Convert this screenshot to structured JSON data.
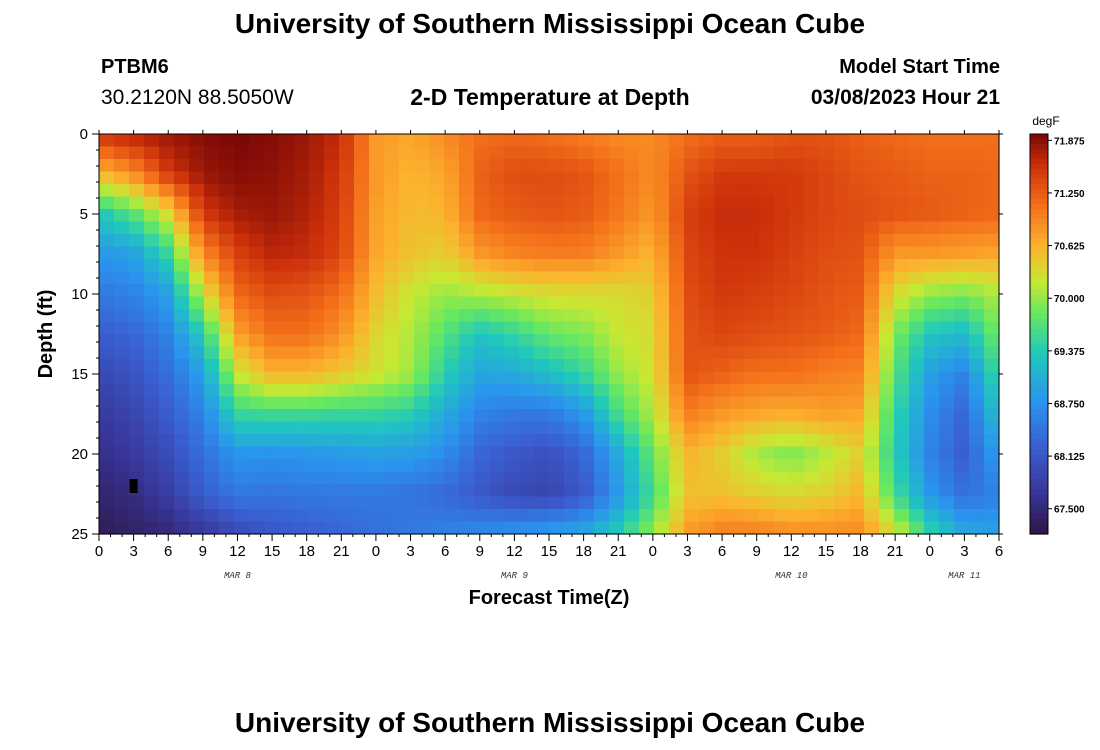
{
  "title": "University of Southern Mississippi Ocean Cube",
  "title_bottom": "University of Southern Mississippi Ocean Cube",
  "station": {
    "id": "PTBM6",
    "coords": "30.2120N  88.5050W"
  },
  "subtitle": "2-D Temperature at Depth",
  "model": {
    "label": "Model Start Time",
    "time": "03/08/2023 Hour 21"
  },
  "chart_data": {
    "type": "heatmap",
    "title": "2-D Temperature at Depth",
    "xlabel": "Forecast Time(Z)",
    "ylabel": "Depth (ft)",
    "x_range_hours": [
      0,
      78
    ],
    "y_range_ft": [
      0,
      25
    ],
    "x_tick_labels": [
      "0",
      "3",
      "6",
      "9",
      "12",
      "15",
      "18",
      "21",
      "0",
      "3",
      "6",
      "9",
      "12",
      "15",
      "18",
      "21",
      "0",
      "3",
      "6",
      "9",
      "12",
      "15",
      "18",
      "21",
      "0",
      "3",
      "6"
    ],
    "date_labels": [
      "MAR 8",
      "MAR 9",
      "MAR 10",
      "MAR 11"
    ],
    "date_label_hours": [
      12,
      36,
      60,
      75
    ],
    "y_ticks": [
      0,
      5,
      10,
      15,
      20,
      25
    ],
    "y_tick_labels": [
      "0",
      "5",
      "10",
      "15",
      "20",
      "25"
    ],
    "colorbar": {
      "unit": "degF",
      "min": 67.2,
      "max": 71.95,
      "tick_values": [
        71.875,
        71.25,
        70.625,
        70.0,
        69.375,
        68.75,
        68.125,
        67.5
      ],
      "tick_labels": [
        "71.875",
        "71.250",
        "70.625",
        "70.000",
        "69.375",
        "68.750",
        "68.125",
        "67.500"
      ]
    },
    "depths_ft": [
      0,
      2.5,
      5,
      7.5,
      10,
      12.5,
      15,
      17.5,
      20,
      22.5,
      25
    ],
    "times_h": [
      0,
      3,
      6,
      9,
      12,
      15,
      18,
      21,
      24,
      27,
      30,
      33,
      36,
      39,
      42,
      45,
      48,
      51,
      54,
      57,
      60,
      63,
      66,
      69,
      72,
      75,
      78
    ],
    "temperature_degF": [
      [
        71.55,
        71.7,
        71.8,
        71.9,
        71.95,
        71.9,
        71.8,
        71.6,
        70.8,
        70.7,
        70.9,
        71.1,
        71.15,
        71.1,
        71.0,
        70.9,
        70.9,
        71.1,
        71.2,
        71.2,
        71.3,
        71.3,
        71.2,
        71.15,
        71.1,
        71.1,
        71.1
      ],
      [
        70.55,
        70.9,
        71.5,
        71.8,
        71.9,
        71.85,
        71.75,
        71.5,
        70.8,
        70.6,
        70.7,
        71.2,
        71.35,
        71.35,
        71.3,
        71.1,
        70.9,
        71.3,
        71.5,
        71.5,
        71.5,
        71.4,
        71.3,
        71.25,
        71.2,
        71.2,
        71.15
      ],
      [
        69.3,
        69.7,
        70.3,
        71.5,
        71.75,
        71.8,
        71.7,
        71.45,
        70.75,
        70.55,
        70.6,
        71.15,
        71.25,
        71.3,
        71.25,
        71.05,
        70.8,
        71.45,
        71.6,
        71.6,
        71.5,
        71.4,
        71.35,
        71.3,
        71.25,
        71.2,
        71.15
      ],
      [
        68.8,
        68.9,
        69.5,
        70.9,
        71.45,
        71.65,
        71.6,
        71.4,
        70.7,
        70.5,
        70.4,
        70.8,
        70.95,
        71.0,
        71.0,
        70.8,
        70.6,
        71.4,
        71.55,
        71.55,
        71.45,
        71.35,
        71.3,
        70.8,
        70.8,
        70.75,
        70.7
      ],
      [
        68.5,
        68.6,
        68.9,
        70.2,
        71.15,
        71.35,
        71.3,
        71.1,
        70.55,
        70.2,
        70.0,
        70.1,
        70.2,
        70.3,
        70.3,
        70.3,
        70.4,
        71.35,
        71.5,
        71.45,
        71.4,
        71.3,
        71.25,
        70.3,
        70.0,
        69.9,
        70.1
      ],
      [
        68.2,
        68.3,
        68.6,
        69.4,
        70.75,
        71.1,
        71.1,
        70.85,
        70.35,
        70.1,
        69.7,
        69.3,
        69.5,
        69.8,
        69.9,
        70.2,
        70.3,
        71.3,
        71.4,
        71.35,
        71.3,
        71.25,
        71.15,
        69.9,
        69.3,
        69.2,
        69.9
      ],
      [
        67.95,
        68.1,
        68.4,
        68.9,
        70.2,
        70.6,
        70.6,
        70.45,
        70.25,
        70.05,
        69.4,
        68.95,
        69.0,
        69.2,
        69.5,
        70.0,
        70.25,
        71.3,
        71.2,
        71.1,
        71.1,
        71.0,
        70.95,
        69.7,
        68.9,
        68.6,
        69.6
      ],
      [
        67.75,
        67.9,
        68.2,
        68.6,
        69.5,
        69.55,
        69.55,
        69.5,
        69.5,
        69.4,
        69.0,
        68.6,
        68.5,
        68.5,
        68.8,
        69.6,
        70.1,
        71.0,
        70.8,
        70.7,
        70.65,
        70.75,
        70.7,
        69.5,
        68.7,
        68.3,
        69.3
      ],
      [
        67.6,
        67.75,
        68.0,
        68.4,
        68.8,
        68.75,
        68.8,
        68.85,
        68.9,
        68.85,
        68.7,
        68.3,
        68.15,
        68.05,
        68.3,
        69.0,
        69.8,
        70.6,
        70.4,
        70.05,
        69.9,
        70.1,
        70.4,
        69.4,
        68.6,
        68.2,
        68.9
      ],
      [
        67.45,
        67.55,
        67.8,
        68.2,
        68.5,
        68.45,
        68.5,
        68.5,
        68.5,
        68.45,
        68.35,
        68.15,
        67.95,
        67.9,
        68.15,
        68.8,
        69.6,
        70.5,
        70.5,
        70.4,
        70.3,
        70.4,
        70.6,
        69.6,
        68.8,
        68.4,
        68.6
      ],
      [
        67.3,
        67.4,
        67.5,
        67.7,
        67.95,
        68.1,
        68.2,
        68.3,
        68.4,
        68.5,
        68.6,
        68.7,
        68.8,
        68.9,
        69.0,
        69.4,
        70.0,
        70.8,
        71.0,
        71.0,
        70.9,
        70.9,
        70.9,
        70.3,
        69.5,
        69.0,
        68.9
      ]
    ],
    "marker": {
      "hour": 3,
      "depth_ft": 22
    }
  }
}
